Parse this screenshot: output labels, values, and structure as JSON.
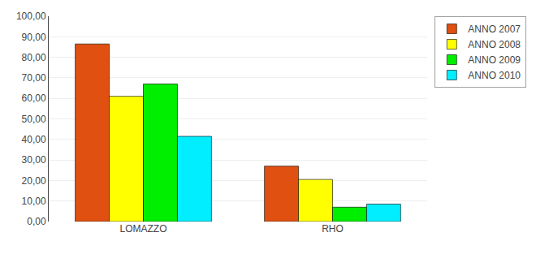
{
  "chart_data": {
    "type": "bar",
    "categories": [
      "LOMAZZO",
      "RHO"
    ],
    "series": [
      {
        "name": "ANNO 2007",
        "color": "#E05010",
        "values": [
          86.5,
          27.0
        ]
      },
      {
        "name": "ANNO 2008",
        "color": "#FFFF00",
        "values": [
          61.0,
          20.5
        ]
      },
      {
        "name": "ANNO 2009",
        "color": "#00EE00",
        "values": [
          67.0,
          7.0
        ]
      },
      {
        "name": "ANNO 2010",
        "color": "#00EEFF",
        "values": [
          41.5,
          8.5
        ]
      }
    ],
    "ylim": [
      0,
      100
    ],
    "yticks": [
      {
        "value": 0,
        "label": "0,00"
      },
      {
        "value": 10,
        "label": "10,00"
      },
      {
        "value": 20,
        "label": "20,00"
      },
      {
        "value": 30,
        "label": "30,00"
      },
      {
        "value": 40,
        "label": "40,00"
      },
      {
        "value": 50,
        "label": "50,00"
      },
      {
        "value": 60,
        "label": "60,00"
      },
      {
        "value": 70,
        "label": "70,00"
      },
      {
        "value": 80,
        "label": "80,00"
      },
      {
        "value": 90,
        "label": "90,00"
      },
      {
        "value": 100,
        "label": "100,00"
      }
    ],
    "grid": true,
    "legend": "right"
  }
}
